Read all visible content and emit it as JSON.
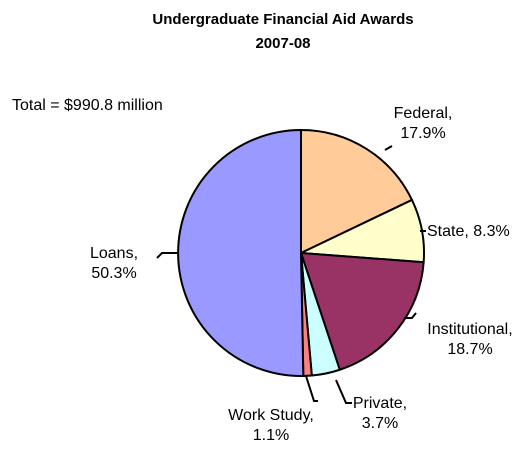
{
  "chart_data": {
    "type": "pie",
    "title": "Undergraduate Financial Aid Awards",
    "subtitle": "2007-08",
    "total_label": "Total = $990.8 million",
    "slices": [
      {
        "name": "Federal",
        "value": 17.9,
        "label_line1": "Federal,",
        "label_line2": "17.9%",
        "color": "#FFCC99"
      },
      {
        "name": "State",
        "value": 8.3,
        "label_line1": "State, 8.3%",
        "label_line2": "",
        "color": "#FFFFCC"
      },
      {
        "name": "Institutional",
        "value": 18.7,
        "label_line1": "Institutional,",
        "label_line2": "18.7%",
        "color": "#993366"
      },
      {
        "name": "Private",
        "value": 3.7,
        "label_line1": "Private,",
        "label_line2": "3.7%",
        "color": "#CCFFFF"
      },
      {
        "name": "Work Study",
        "value": 1.1,
        "label_line1": "Work Study,",
        "label_line2": "1.1%",
        "color": "#FF8080"
      },
      {
        "name": "Loans",
        "value": 50.3,
        "label_line1": "Loans,",
        "label_line2": "50.3%",
        "color": "#9999FF"
      }
    ]
  }
}
